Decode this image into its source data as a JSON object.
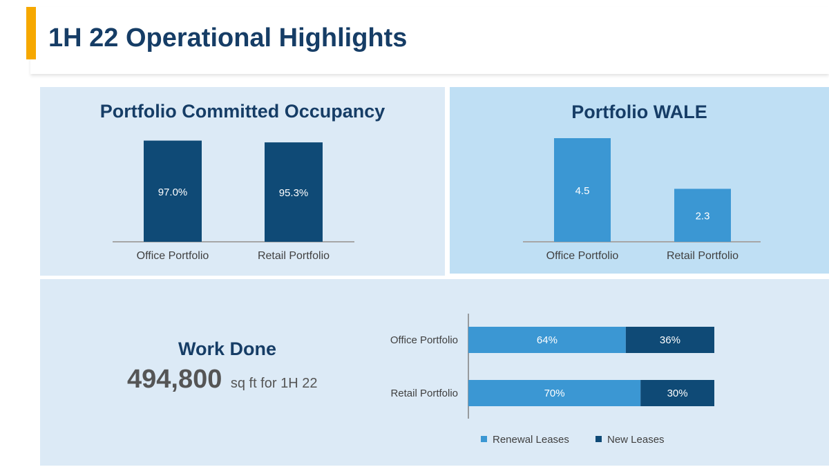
{
  "page": {
    "title": "1H 22 Operational Highlights"
  },
  "colors": {
    "accent": "#f6a800",
    "navy": "#0f4a76",
    "light_blue": "#3b97d3",
    "title_text": "#163d66"
  },
  "chart_data": [
    {
      "type": "bar",
      "title": "Portfolio Committed Occupancy",
      "categories": [
        "Office Portfolio",
        "Retail Portfolio"
      ],
      "values": [
        97.0,
        95.3
      ],
      "data_labels": [
        "97.0%",
        "95.3%"
      ],
      "ylim": [
        0,
        100
      ],
      "grid": false,
      "color": "#0f4a76"
    },
    {
      "type": "bar",
      "title": "Portfolio WALE",
      "categories": [
        "Office Portfolio",
        "Retail Portfolio"
      ],
      "values": [
        4.5,
        2.3
      ],
      "data_labels": [
        "4.5",
        "2.3"
      ],
      "ylim": [
        0,
        5.4
      ],
      "grid": false,
      "color": "#3b97d3"
    },
    {
      "type": "bar",
      "orientation": "horizontal",
      "stacked": true,
      "categories": [
        "Office Portfolio",
        "Retail Portfolio"
      ],
      "series": [
        {
          "name": "Renewal Leases",
          "values": [
            64,
            70
          ],
          "labels": [
            "64%",
            "70%"
          ],
          "color": "#3b97d3"
        },
        {
          "name": "New Leases",
          "values": [
            36,
            30
          ],
          "labels": [
            "36%",
            "30%"
          ],
          "color": "#0f4a76"
        }
      ],
      "xlim": [
        0,
        100
      ],
      "legend": "bottom",
      "grid": false
    }
  ],
  "work_done": {
    "title": "Work Done",
    "value": "494,800",
    "unit": "sq ft for 1H 22"
  }
}
